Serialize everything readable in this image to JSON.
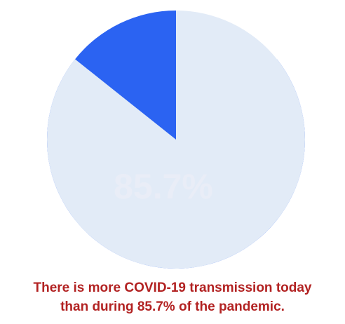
{
  "chart_data": {
    "type": "pie",
    "slices": [
      {
        "value": 85.7,
        "color": "#2b63f2"
      },
      {
        "value": 14.3,
        "color": "#e2ebf7"
      }
    ],
    "center_label": "85.7%",
    "center_label_color": "#e9edf7"
  },
  "caption": {
    "lines": [
      "There is more COVID-19 transmission today",
      "than during 85.7% of the pandemic."
    ],
    "color": "#b22222"
  }
}
